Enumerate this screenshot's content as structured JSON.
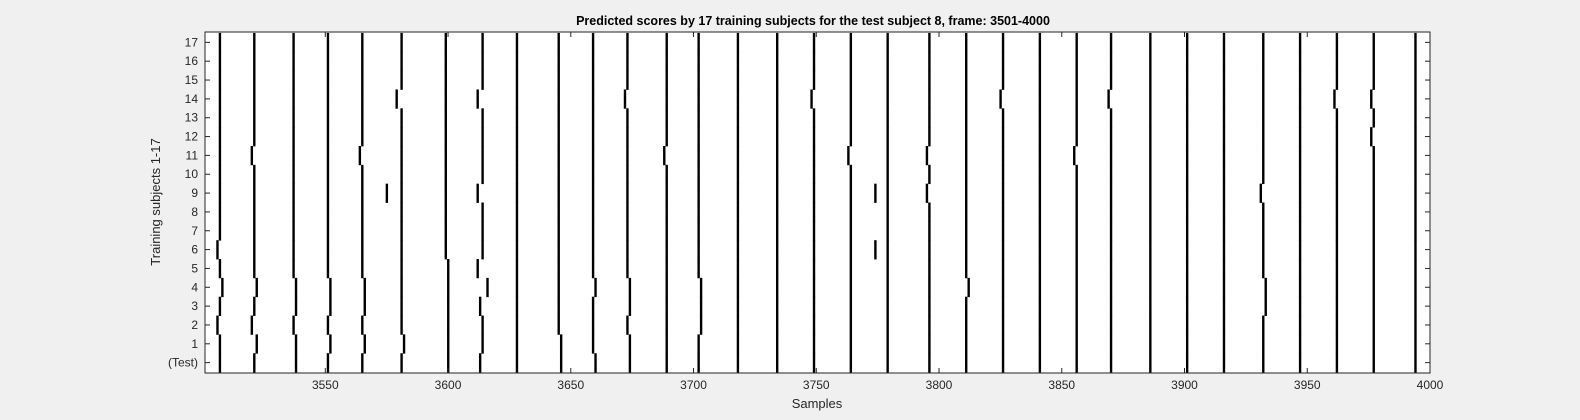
{
  "chart_data": {
    "type": "heatmap",
    "title": "Predicted scores by 17 training subjects for the test subject 8, frame: 3501-4000",
    "xlabel": "Samples",
    "ylabel": "Training subjects 1-17",
    "xlim": [
      3501,
      4000
    ],
    "x_ticks": [
      "3550",
      "3600",
      "3650",
      "3700",
      "3750",
      "3800",
      "3850",
      "3900",
      "3950",
      "4000"
    ],
    "y_ticks": [
      "(Test)",
      "1",
      "2",
      "3",
      "4",
      "5",
      "6",
      "7",
      "8",
      "9",
      "10",
      "11",
      "12",
      "13",
      "14",
      "15",
      "16",
      "17"
    ],
    "grid": false,
    "colors": {
      "background": "#ffffff",
      "mark": "#000000",
      "figure": "#f0f0f0"
    },
    "rows": [
      {
        "label": "(Test)",
        "marks": [
          3507,
          3521,
          3538,
          3551,
          3565,
          3581,
          3600,
          3613,
          3628,
          3646,
          3660,
          3674,
          3689,
          3702,
          3718,
          3734,
          3749,
          3764,
          3779,
          3796,
          3811,
          3826,
          3841,
          3856,
          3870,
          3886,
          3901,
          3916,
          3932,
          3947,
          3962,
          3977,
          3994
        ]
      },
      {
        "label": "1",
        "marks": [
          3507,
          3522,
          3538,
          3552,
          3566,
          3582,
          3600,
          3614,
          3628,
          3646,
          3659,
          3674,
          3689,
          3702,
          3718,
          3734,
          3749,
          3764,
          3779,
          3796,
          3811,
          3826,
          3841,
          3856,
          3870,
          3886,
          3901,
          3916,
          3932,
          3947,
          3962,
          3977,
          3994
        ]
      },
      {
        "label": "2",
        "marks": [
          3506,
          3520,
          3537,
          3551,
          3565,
          3581,
          3600,
          3614,
          3628,
          3645,
          3659,
          3673,
          3689,
          3703,
          3718,
          3734,
          3749,
          3764,
          3779,
          3796,
          3811,
          3826,
          3841,
          3856,
          3870,
          3886,
          3901,
          3916,
          3932,
          3947,
          3962,
          3977,
          3994
        ]
      },
      {
        "label": "3",
        "marks": [
          3507,
          3521,
          3538,
          3552,
          3566,
          3581,
          3600,
          3613,
          3628,
          3645,
          3659,
          3674,
          3689,
          3703,
          3718,
          3734,
          3749,
          3764,
          3779,
          3796,
          3811,
          3826,
          3841,
          3856,
          3870,
          3886,
          3901,
          3916,
          3933,
          3947,
          3962,
          3977,
          3994
        ]
      },
      {
        "label": "4",
        "marks": [
          3508,
          3522,
          3538,
          3552,
          3566,
          3581,
          3600,
          3616,
          3628,
          3645,
          3660,
          3674,
          3689,
          3703,
          3718,
          3734,
          3749,
          3764,
          3779,
          3796,
          3812,
          3826,
          3841,
          3856,
          3870,
          3886,
          3901,
          3916,
          3933,
          3947,
          3962,
          3977,
          3994
        ]
      },
      {
        "label": "5",
        "marks": [
          3507,
          3521,
          3537,
          3551,
          3565,
          3581,
          3600,
          3612,
          3628,
          3645,
          3659,
          3673,
          3689,
          3702,
          3718,
          3734,
          3749,
          3764,
          3779,
          3796,
          3811,
          3826,
          3841,
          3856,
          3870,
          3886,
          3901,
          3916,
          3932,
          3947,
          3962,
          3977,
          3994
        ]
      },
      {
        "label": "6",
        "marks": [
          3506,
          3521,
          3537,
          3551,
          3565,
          3581,
          3599,
          3614,
          3628,
          3645,
          3659,
          3673,
          3689,
          3702,
          3718,
          3734,
          3749,
          3764,
          3774,
          3779,
          3796,
          3811,
          3826,
          3841,
          3856,
          3870,
          3886,
          3901,
          3916,
          3932,
          3947,
          3962,
          3977,
          3994
        ]
      },
      {
        "label": "7",
        "marks": [
          3507,
          3521,
          3537,
          3551,
          3565,
          3581,
          3599,
          3614,
          3628,
          3645,
          3659,
          3673,
          3689,
          3702,
          3718,
          3734,
          3749,
          3764,
          3779,
          3796,
          3811,
          3826,
          3841,
          3856,
          3870,
          3886,
          3901,
          3916,
          3932,
          3947,
          3962,
          3977,
          3994
        ]
      },
      {
        "label": "8",
        "marks": [
          3507,
          3521,
          3537,
          3551,
          3565,
          3581,
          3599,
          3614,
          3628,
          3645,
          3659,
          3673,
          3689,
          3702,
          3718,
          3734,
          3749,
          3764,
          3779,
          3796,
          3811,
          3826,
          3841,
          3856,
          3870,
          3886,
          3901,
          3916,
          3932,
          3947,
          3962,
          3977,
          3994
        ]
      },
      {
        "label": "9",
        "marks": [
          3507,
          3521,
          3537,
          3551,
          3565,
          3575,
          3581,
          3599,
          3612,
          3628,
          3645,
          3659,
          3673,
          3689,
          3702,
          3718,
          3734,
          3749,
          3764,
          3774,
          3779,
          3795,
          3811,
          3826,
          3841,
          3856,
          3870,
          3886,
          3901,
          3916,
          3931,
          3947,
          3962,
          3977,
          3994
        ]
      },
      {
        "label": "10",
        "marks": [
          3507,
          3521,
          3537,
          3551,
          3565,
          3581,
          3599,
          3614,
          3628,
          3645,
          3659,
          3673,
          3689,
          3702,
          3718,
          3734,
          3749,
          3764,
          3779,
          3796,
          3811,
          3826,
          3841,
          3856,
          3870,
          3886,
          3901,
          3916,
          3932,
          3947,
          3962,
          3977,
          3994
        ]
      },
      {
        "label": "11",
        "marks": [
          3507,
          3520,
          3537,
          3551,
          3564,
          3581,
          3599,
          3614,
          3628,
          3645,
          3659,
          3673,
          3688,
          3702,
          3718,
          3734,
          3749,
          3763,
          3779,
          3795,
          3811,
          3826,
          3841,
          3855,
          3870,
          3886,
          3901,
          3916,
          3932,
          3947,
          3962,
          3977,
          3994
        ]
      },
      {
        "label": "12",
        "marks": [
          3507,
          3521,
          3537,
          3551,
          3565,
          3581,
          3599,
          3614,
          3628,
          3645,
          3659,
          3673,
          3689,
          3702,
          3718,
          3734,
          3749,
          3764,
          3779,
          3796,
          3811,
          3826,
          3841,
          3856,
          3870,
          3886,
          3901,
          3916,
          3932,
          3947,
          3962,
          3976,
          3994
        ]
      },
      {
        "label": "13",
        "marks": [
          3507,
          3521,
          3537,
          3551,
          3565,
          3581,
          3599,
          3614,
          3628,
          3645,
          3659,
          3673,
          3689,
          3702,
          3718,
          3734,
          3749,
          3764,
          3779,
          3796,
          3811,
          3826,
          3841,
          3856,
          3870,
          3886,
          3901,
          3916,
          3932,
          3947,
          3962,
          3977,
          3994
        ]
      },
      {
        "label": "14",
        "marks": [
          3507,
          3521,
          3537,
          3551,
          3565,
          3579,
          3599,
          3612,
          3628,
          3645,
          3659,
          3672,
          3689,
          3702,
          3718,
          3734,
          3748,
          3764,
          3779,
          3796,
          3811,
          3825,
          3841,
          3856,
          3869,
          3886,
          3901,
          3916,
          3932,
          3947,
          3961,
          3976,
          3994
        ]
      },
      {
        "label": "15",
        "marks": [
          3507,
          3521,
          3537,
          3551,
          3565,
          3581,
          3599,
          3614,
          3628,
          3645,
          3659,
          3673,
          3689,
          3702,
          3718,
          3734,
          3749,
          3764,
          3779,
          3796,
          3811,
          3826,
          3841,
          3856,
          3870,
          3886,
          3901,
          3916,
          3932,
          3947,
          3962,
          3977,
          3994
        ]
      },
      {
        "label": "16",
        "marks": [
          3507,
          3521,
          3537,
          3551,
          3565,
          3581,
          3599,
          3614,
          3628,
          3645,
          3659,
          3673,
          3689,
          3702,
          3718,
          3734,
          3749,
          3764,
          3779,
          3796,
          3811,
          3826,
          3841,
          3856,
          3870,
          3886,
          3901,
          3916,
          3932,
          3947,
          3962,
          3977,
          3994
        ]
      },
      {
        "label": "17",
        "marks": [
          3507,
          3521,
          3537,
          3551,
          3565,
          3581,
          3599,
          3614,
          3628,
          3645,
          3659,
          3673,
          3689,
          3702,
          3718,
          3734,
          3749,
          3764,
          3779,
          3796,
          3811,
          3826,
          3841,
          3856,
          3870,
          3886,
          3901,
          3916,
          3932,
          3947,
          3962,
          3977,
          3994
        ]
      }
    ]
  }
}
